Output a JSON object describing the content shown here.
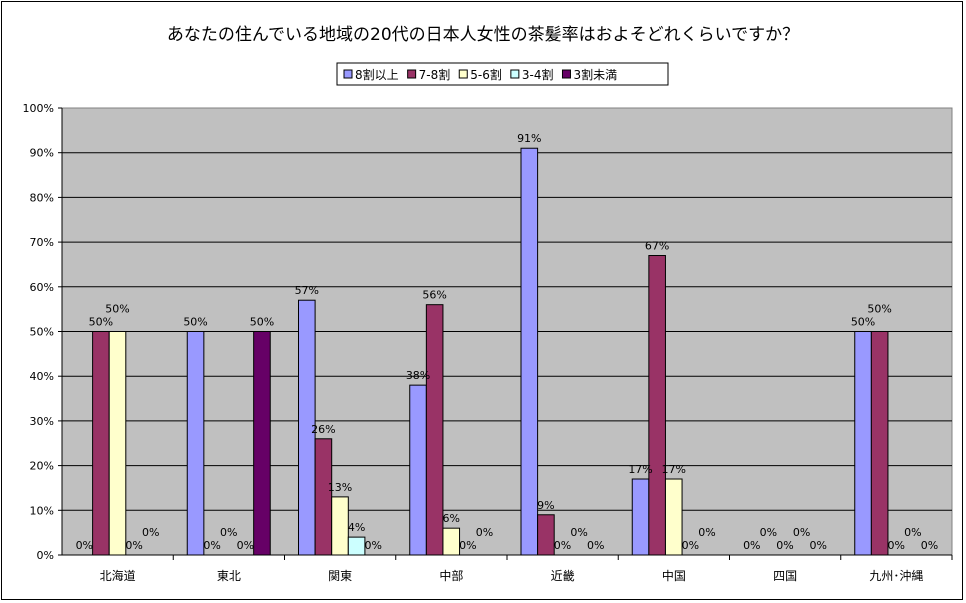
{
  "chart_data": {
    "type": "bar",
    "title": "あなたの住んでいる地域の20代の日本人女性の茶髪率はおよそどれくらいですか？",
    "xlabel": "",
    "ylabel": "",
    "ylim": [
      0,
      100
    ],
    "yticks": [
      "0%",
      "10%",
      "20%",
      "30%",
      "40%",
      "50%",
      "60%",
      "70%",
      "80%",
      "90%",
      "100%"
    ],
    "grid": true,
    "legend_position": "top-center",
    "categories": [
      "北海道",
      "東北",
      "関東",
      "中部",
      "近畿",
      "中国",
      "四国",
      "九州･沖縄"
    ],
    "series": [
      {
        "name": "8割以上",
        "color": "#9999FF",
        "values": [
          0,
          50,
          57,
          38,
          91,
          17,
          0,
          50
        ]
      },
      {
        "name": "7-8割",
        "color": "#993366",
        "values": [
          50,
          0,
          26,
          56,
          9,
          67,
          0,
          50
        ]
      },
      {
        "name": "5-6割",
        "color": "#FFFFCC",
        "values": [
          50,
          0,
          13,
          6,
          0,
          17,
          0,
          0
        ]
      },
      {
        "name": "3-4割",
        "color": "#CCFFFF",
        "values": [
          0,
          0,
          4,
          0,
          0,
          0,
          0,
          0
        ]
      },
      {
        "name": "3割未満",
        "color": "#660066",
        "values": [
          0,
          50,
          0,
          0,
          0,
          0,
          0,
          0
        ]
      }
    ],
    "plot_background": "#C0C0C0"
  }
}
